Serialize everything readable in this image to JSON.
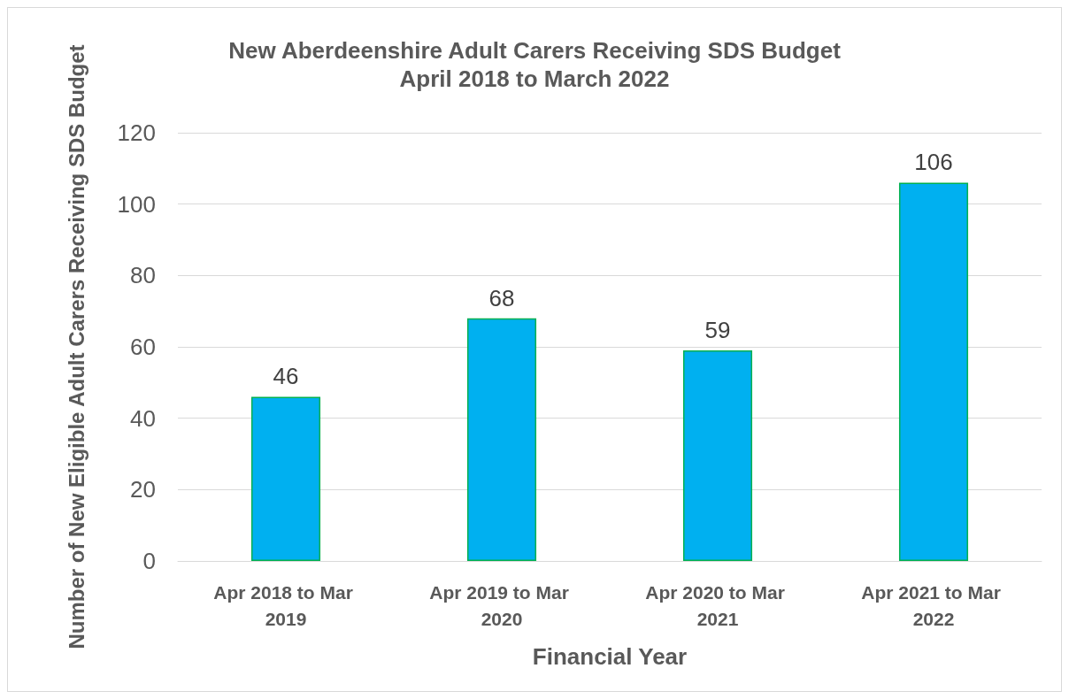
{
  "chart_data": {
    "type": "bar",
    "title": "New Aberdeenshire Adult Carers Receiving SDS Budget",
    "subtitle": "April 2018 to March 2022",
    "xlabel": "Financial Year",
    "ylabel": "Number of New Eligible Adult Carers Receiving SDS Budget",
    "categories": [
      "Apr 2018 to Mar 2019",
      "Apr 2019 to Mar 2020",
      "Apr 2020 to Mar 2021",
      "Apr 2021 to Mar 2022"
    ],
    "values": [
      46,
      68,
      59,
      106
    ],
    "color": "#00b0f0",
    "ylim": [
      0,
      120
    ],
    "yticks": [
      0,
      20,
      40,
      60,
      80,
      100,
      120
    ],
    "grid": "y",
    "data_labels": true
  }
}
